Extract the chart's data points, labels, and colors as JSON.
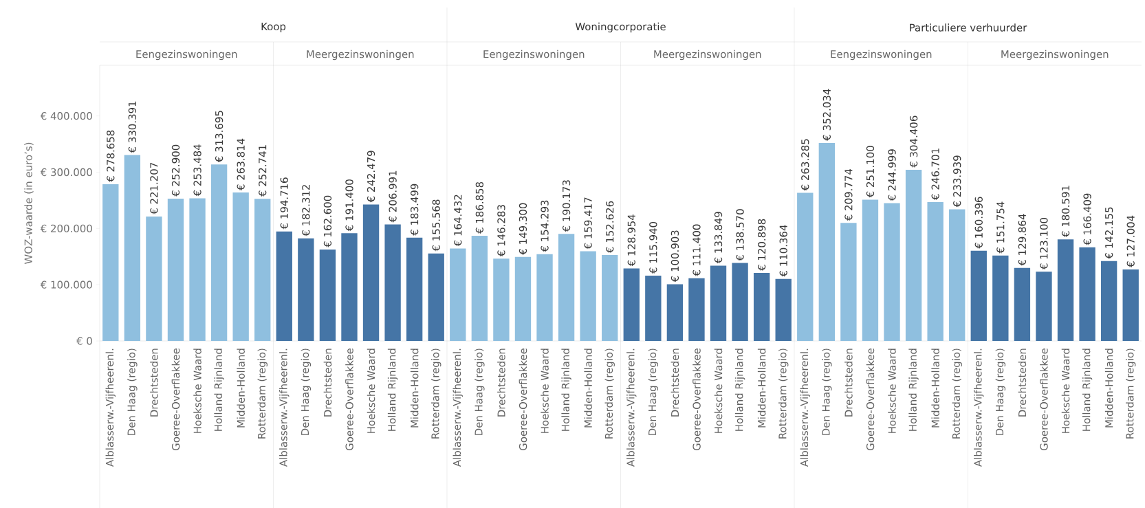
{
  "chart_data": {
    "type": "bar",
    "ylabel": "WOZ-waarde (in euro’s)",
    "categories": [
      "Alblasserw.-Vijfheerenl.",
      "Den Haag (regio)",
      "Drechtsteden",
      "Goeree-Overflakkee",
      "Hoeksche Waard",
      "Holland Rijnland",
      "Midden-Holland",
      "Rotterdam (regio)",
      "Alblasserw.-Vijfheerenl.",
      "Den Haag (regio)",
      "Drechtsteden",
      "Goeree-Overflakkee",
      "Hoeksche Waard",
      "Holland Rijnland",
      "Midden-Holland",
      "Rotterdam (regio)",
      "Alblasserw.-Vijfheerenl.",
      "Den Haag (regio)",
      "Drechtsteden",
      "Goeree-Overflakkee",
      "Hoeksche Waard",
      "Holland Rijnland",
      "Midden-Holland",
      "Rotterdam (regio)",
      "Alblasserw.-Vijfheerenl.",
      "Den Haag (regio)",
      "Drechtsteden",
      "Goeree-Overflakkee",
      "Hoeksche Waard",
      "Holland Rijnland",
      "Midden-Holland",
      "Rotterdam (regio)",
      "Alblasserw.-Vijfheerenl.",
      "Den Haag (regio)",
      "Drechtsteden",
      "Goeree-Overflakkee",
      "Hoeksche Waard",
      "Holland Rijnland",
      "Midden-Holland",
      "Rotterdam (regio)",
      "Alblasserw.-Vijfheerenl.",
      "Den Haag (regio)",
      "Drechtsteden",
      "Goeree-Overflakkee",
      "Hoeksche Waard",
      "Holland Rijnland",
      "Midden-Holland",
      "Rotterdam (regio)"
    ],
    "values": [
      278658,
      330391,
      221207,
      252900,
      253484,
      313695,
      263814,
      252741,
      194716,
      182312,
      162600,
      191400,
      242479,
      206991,
      183499,
      155568,
      164432,
      186858,
      146283,
      149300,
      154293,
      190173,
      159417,
      152626,
      128954,
      115940,
      100903,
      111400,
      133849,
      138570,
      120898,
      110364,
      263285,
      352034,
      209774,
      251100,
      244999,
      304406,
      246701,
      233939,
      160396,
      151754,
      129864,
      123100,
      180591,
      166409,
      142155,
      127004
    ],
    "value_labels": [
      "€ 278.658",
      "€ 330.391",
      "€ 221.207",
      "€ 252.900",
      "€ 253.484",
      "€ 313.695",
      "€ 263.814",
      "€ 252.741",
      "€ 194.716",
      "€ 182.312",
      "€ 162.600",
      "€ 191.400",
      "€ 242.479",
      "€ 206.991",
      "€ 183.499",
      "€ 155.568",
      "€ 164.432",
      "€ 186.858",
      "€ 146.283",
      "€ 149.300",
      "€ 154.293",
      "€ 190.173",
      "€ 159.417",
      "€ 152.626",
      "€ 128.954",
      "€ 115.940",
      "€ 100.903",
      "€ 111.400",
      "€ 133.849",
      "€ 138.570",
      "€ 120.898",
      "€ 110.364",
      "€ 263.285",
      "€ 352.034",
      "€ 209.774",
      "€ 251.100",
      "€ 244.999",
      "€ 304.406",
      "€ 246.701",
      "€ 233.939",
      "€ 160.396",
      "€ 151.754",
      "€ 129.864",
      "€ 123.100",
      "€ 180.591",
      "€ 166.409",
      "€ 142.155",
      "€ 127.004"
    ],
    "colors": [
      "#8fbfdf",
      "#8fbfdf",
      "#8fbfdf",
      "#8fbfdf",
      "#8fbfdf",
      "#8fbfdf",
      "#8fbfdf",
      "#8fbfdf",
      "#4575a6",
      "#4575a6",
      "#4575a6",
      "#4575a6",
      "#4575a6",
      "#4575a6",
      "#4575a6",
      "#4575a6",
      "#8fbfdf",
      "#8fbfdf",
      "#8fbfdf",
      "#8fbfdf",
      "#8fbfdf",
      "#8fbfdf",
      "#8fbfdf",
      "#8fbfdf",
      "#4575a6",
      "#4575a6",
      "#4575a6",
      "#4575a6",
      "#4575a6",
      "#4575a6",
      "#4575a6",
      "#4575a6",
      "#8fbfdf",
      "#8fbfdf",
      "#8fbfdf",
      "#8fbfdf",
      "#8fbfdf",
      "#8fbfdf",
      "#8fbfdf",
      "#8fbfdf",
      "#4575a6",
      "#4575a6",
      "#4575a6",
      "#4575a6",
      "#4575a6",
      "#4575a6",
      "#4575a6",
      "#4575a6"
    ],
    "ylim": [
      0,
      490000
    ],
    "yticks": [
      {
        "value": 0,
        "label": "€ 0"
      },
      {
        "value": 100000,
        "label": "€ 100.000"
      },
      {
        "value": 200000,
        "label": "€ 200.000"
      },
      {
        "value": 300000,
        "label": "€ 300.000"
      },
      {
        "value": 400000,
        "label": "€ 400.000"
      }
    ],
    "annotations": [
      "Koop",
      "Woningcorporatie",
      "Particuliere verhuurder",
      "Eengezinswoningen",
      "Meergezinswoningen",
      "Eengezinswoningen",
      "Meergezinswoningen",
      "Eengezinswoningen",
      "Meergezinswoningen"
    ]
  }
}
